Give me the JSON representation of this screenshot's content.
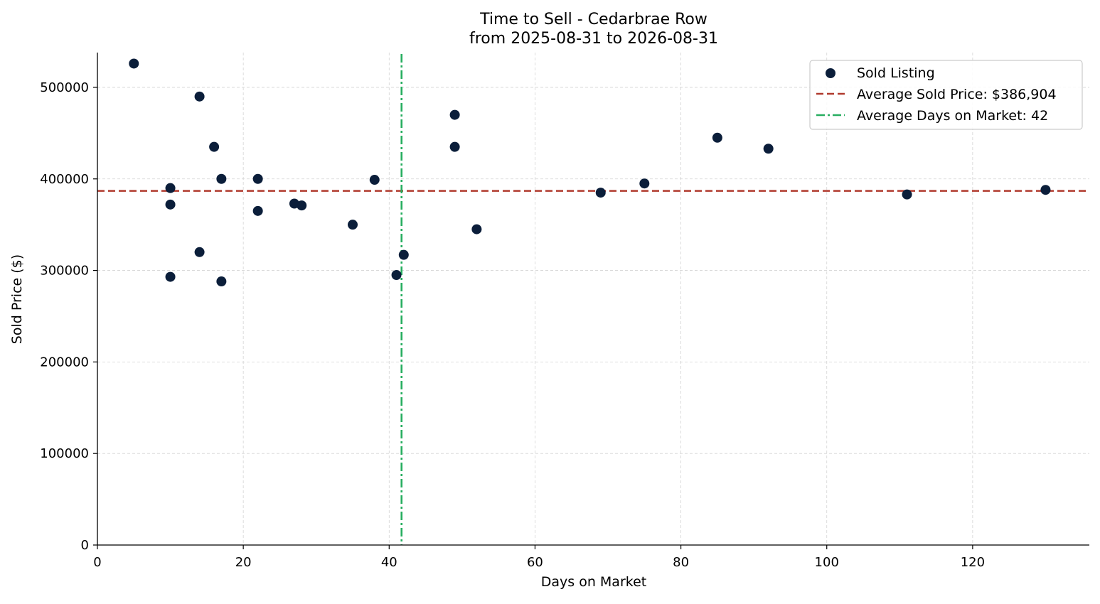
{
  "chart_data": {
    "type": "scatter",
    "title": "Time to Sell - Cedarbrae Row",
    "subtitle": "from 2025-08-31 to 2026-08-31",
    "xlabel": "Days on Market",
    "ylabel": "Sold Price ($)",
    "xlim": [
      0,
      136
    ],
    "ylim": [
      0,
      538000
    ],
    "x_ticks": [
      0,
      20,
      40,
      60,
      80,
      100,
      120
    ],
    "y_ticks": [
      0,
      100000,
      200000,
      300000,
      400000,
      500000
    ],
    "grid": true,
    "legend_position": "top-right",
    "series": [
      {
        "name": "Sold Listing",
        "color": "#0b1e3a",
        "points": [
          {
            "x": 5,
            "y": 526000
          },
          {
            "x": 10,
            "y": 390000
          },
          {
            "x": 10,
            "y": 372000
          },
          {
            "x": 10,
            "y": 293000
          },
          {
            "x": 14,
            "y": 490000
          },
          {
            "x": 14,
            "y": 320000
          },
          {
            "x": 16,
            "y": 435000
          },
          {
            "x": 17,
            "y": 400000
          },
          {
            "x": 17,
            "y": 288000
          },
          {
            "x": 22,
            "y": 400000
          },
          {
            "x": 22,
            "y": 365000
          },
          {
            "x": 27,
            "y": 373000
          },
          {
            "x": 28,
            "y": 371000
          },
          {
            "x": 35,
            "y": 350000
          },
          {
            "x": 38,
            "y": 399000
          },
          {
            "x": 41,
            "y": 295000
          },
          {
            "x": 42,
            "y": 317000
          },
          {
            "x": 49,
            "y": 470000
          },
          {
            "x": 49,
            "y": 435000
          },
          {
            "x": 52,
            "y": 345000
          },
          {
            "x": 69,
            "y": 385000
          },
          {
            "x": 75,
            "y": 395000
          },
          {
            "x": 85,
            "y": 445000
          },
          {
            "x": 92,
            "y": 433000
          },
          {
            "x": 111,
            "y": 383000
          },
          {
            "x": 130,
            "y": 388000
          }
        ]
      }
    ],
    "reference_lines": [
      {
        "orientation": "horizontal",
        "value": 386904,
        "label": "Average Sold Price: $386,904",
        "color": "#b03a2e",
        "style": "dashed"
      },
      {
        "orientation": "vertical",
        "value": 41.7,
        "label": "Average Days on Market: 42",
        "color": "#27ae60",
        "style": "dashdot"
      }
    ]
  }
}
